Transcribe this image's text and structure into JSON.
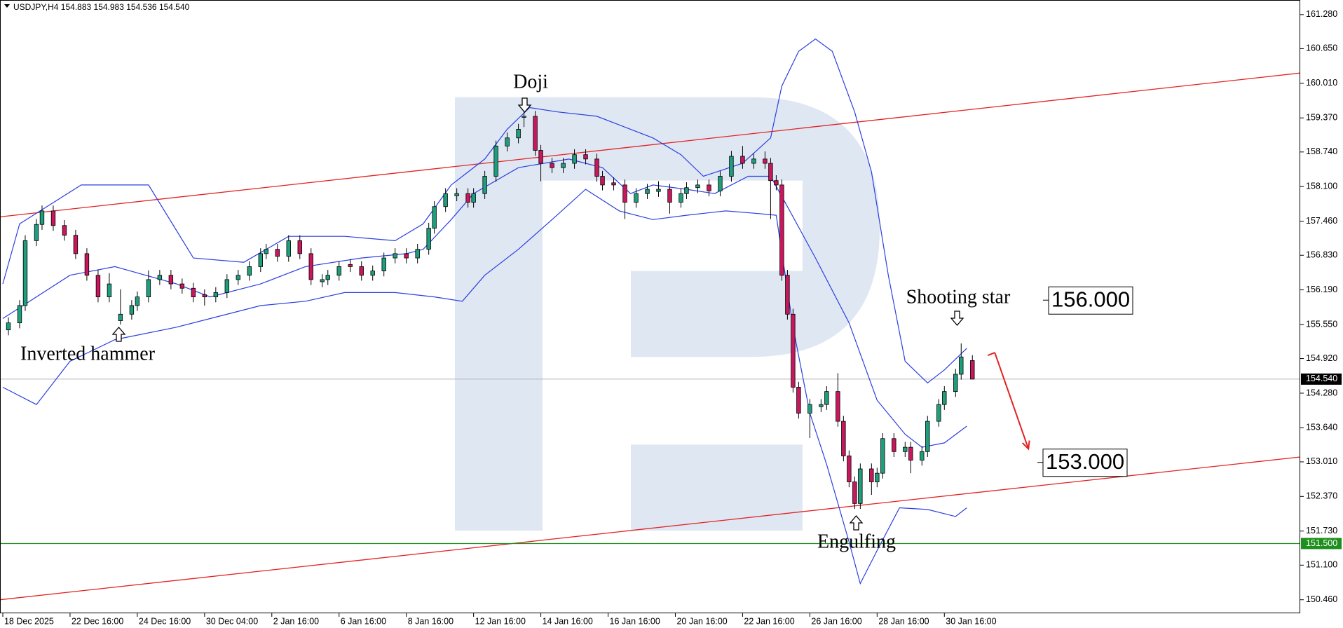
{
  "chart_data": {
    "type": "candlestick",
    "title": "USDJPY,H4 154.883 154.983 154.536 154.540",
    "xlim": [
      -0.5,
      231.5
    ],
    "ylim": [
      150.21,
      161.55
    ],
    "xticks": [
      {
        "value": 0,
        "label": "18 Dec 2025"
      },
      {
        "value": 12,
        "label": "22 Dec 16:00"
      },
      {
        "value": 24,
        "label": "24 Dec 16:00"
      },
      {
        "value": 36,
        "label": "30 Dec 04:00"
      },
      {
        "value": 48,
        "label": "2 Jan 16:00"
      },
      {
        "value": 60,
        "label": "6 Jan 16:00"
      },
      {
        "value": 72,
        "label": "8 Jan 16:00"
      },
      {
        "value": 84,
        "label": "12 Jan 16:00"
      },
      {
        "value": 96,
        "label": "14 Jan 16:00"
      },
      {
        "value": 108,
        "label": "16 Jan 16:00"
      },
      {
        "value": 120,
        "label": "20 Jan 16:00"
      },
      {
        "value": 132,
        "label": "22 Jan 16:00"
      },
      {
        "value": 144,
        "label": "26 Jan 16:00"
      },
      {
        "value": 156,
        "label": "28 Jan 16:00"
      },
      {
        "value": 168,
        "label": "30 Jan 16:00"
      }
    ],
    "yticks": [
      {
        "value": 161.28,
        "label": "161.280"
      },
      {
        "value": 160.65,
        "label": "160.650"
      },
      {
        "value": 160.01,
        "label": "160.010"
      },
      {
        "value": 159.37,
        "label": "159.370"
      },
      {
        "value": 158.74,
        "label": "158.740"
      },
      {
        "value": 158.1,
        "label": "158.100"
      },
      {
        "value": 157.46,
        "label": "157.460"
      },
      {
        "value": 156.83,
        "label": "156.830"
      },
      {
        "value": 156.19,
        "label": "156.190"
      },
      {
        "value": 155.55,
        "label": "155.550"
      },
      {
        "value": 154.92,
        "label": "154.920"
      },
      {
        "value": 154.28,
        "label": "154.280"
      },
      {
        "value": 153.64,
        "label": "153.640"
      },
      {
        "value": 153.01,
        "label": "153.010"
      },
      {
        "value": 152.37,
        "label": "152.370"
      },
      {
        "value": 151.73,
        "label": "151.730"
      },
      {
        "value": 151.1,
        "label": "151.100"
      },
      {
        "value": 150.46,
        "label": "150.460"
      }
    ],
    "up_color": "#1f9e7e",
    "down_color": "#c8175d",
    "band_color": "#2b3fe0",
    "candles": [
      [
        1,
        155.45,
        155.68,
        155.35,
        155.58
      ],
      [
        3,
        155.58,
        156.0,
        155.48,
        155.9
      ],
      [
        4,
        155.9,
        157.2,
        155.8,
        157.1
      ],
      [
        6,
        157.1,
        157.5,
        157.0,
        157.4
      ],
      [
        7,
        157.4,
        157.75,
        157.3,
        157.65
      ],
      [
        9,
        157.65,
        157.75,
        157.28,
        157.38
      ],
      [
        11,
        157.38,
        157.48,
        157.1,
        157.2
      ],
      [
        13,
        157.2,
        157.3,
        156.76,
        156.86
      ],
      [
        15,
        156.86,
        156.96,
        156.36,
        156.46
      ],
      [
        17,
        156.46,
        156.56,
        155.96,
        156.06
      ],
      [
        19,
        156.06,
        156.5,
        155.96,
        156.3
      ],
      [
        21,
        155.62,
        156.2,
        155.55,
        155.74
      ],
      [
        23,
        155.74,
        156.0,
        155.64,
        155.9
      ],
      [
        24,
        155.9,
        156.16,
        155.8,
        156.06
      ],
      [
        26,
        156.06,
        156.55,
        155.96,
        156.38
      ],
      [
        28,
        156.38,
        156.56,
        156.28,
        156.46
      ],
      [
        30,
        156.46,
        156.56,
        156.2,
        156.3
      ],
      [
        32,
        156.3,
        156.4,
        156.12,
        156.22
      ],
      [
        34,
        156.22,
        156.32,
        155.96,
        156.06
      ],
      [
        36,
        156.1,
        156.2,
        155.9,
        156.06
      ],
      [
        38,
        156.06,
        156.24,
        155.96,
        156.14
      ],
      [
        40,
        156.14,
        156.48,
        156.04,
        156.38
      ],
      [
        42,
        156.38,
        156.56,
        156.28,
        156.46
      ],
      [
        44,
        156.46,
        156.72,
        156.36,
        156.62
      ],
      [
        46,
        156.62,
        156.96,
        156.52,
        156.86
      ],
      [
        47,
        156.86,
        157.04,
        156.76,
        156.94
      ],
      [
        49,
        156.94,
        157.04,
        156.71,
        156.81
      ],
      [
        51,
        156.81,
        157.2,
        156.71,
        157.1
      ],
      [
        53,
        157.1,
        157.2,
        156.76,
        156.86
      ],
      [
        55,
        156.86,
        156.96,
        156.28,
        156.38
      ],
      [
        57,
        156.34,
        156.48,
        156.24,
        156.38
      ],
      [
        58,
        156.38,
        156.56,
        156.28,
        156.46
      ],
      [
        60,
        156.46,
        156.72,
        156.36,
        156.62
      ],
      [
        62,
        156.66,
        156.76,
        156.52,
        156.62
      ],
      [
        64,
        156.62,
        156.72,
        156.36,
        156.46
      ],
      [
        66,
        156.46,
        156.64,
        156.36,
        156.54
      ],
      [
        68,
        156.54,
        156.88,
        156.44,
        156.78
      ],
      [
        70,
        156.78,
        156.96,
        156.68,
        156.86
      ],
      [
        72,
        156.86,
        156.96,
        156.68,
        156.78
      ],
      [
        74,
        156.78,
        157.04,
        156.68,
        156.94
      ],
      [
        76,
        156.94,
        157.43,
        156.84,
        157.33
      ],
      [
        77,
        157.33,
        157.83,
        157.23,
        157.73
      ],
      [
        79,
        157.73,
        158.07,
        157.63,
        157.97
      ],
      [
        81,
        157.93,
        158.07,
        157.83,
        157.97
      ],
      [
        83,
        157.97,
        158.07,
        157.71,
        157.81
      ],
      [
        84,
        157.81,
        158.07,
        157.71,
        157.97
      ],
      [
        86,
        157.97,
        158.39,
        157.87,
        158.29
      ],
      [
        88,
        158.29,
        158.95,
        158.19,
        158.85
      ],
      [
        90,
        158.85,
        159.1,
        158.75,
        159.0
      ],
      [
        92,
        159.0,
        159.26,
        158.9,
        159.16
      ],
      [
        93,
        159.38,
        159.6,
        159.2,
        159.4
      ],
      [
        95,
        159.4,
        159.5,
        158.67,
        158.77
      ],
      [
        96,
        158.77,
        158.87,
        158.2,
        158.53
      ],
      [
        98,
        158.53,
        158.63,
        158.35,
        158.45
      ],
      [
        100,
        158.45,
        158.63,
        158.35,
        158.53
      ],
      [
        102,
        158.53,
        158.79,
        158.43,
        158.69
      ],
      [
        104,
        158.69,
        158.79,
        158.51,
        158.61
      ],
      [
        106,
        158.61,
        158.71,
        158.19,
        158.29
      ],
      [
        107,
        158.29,
        158.39,
        158.03,
        158.13
      ],
      [
        109,
        158.17,
        158.27,
        158.03,
        158.13
      ],
      [
        111,
        158.13,
        158.23,
        157.5,
        157.81
      ],
      [
        113,
        157.81,
        158.07,
        157.71,
        157.97
      ],
      [
        115,
        157.97,
        158.15,
        157.87,
        158.05
      ],
      [
        117,
        158.01,
        158.2,
        157.91,
        158.05
      ],
      [
        119,
        158.05,
        158.15,
        157.6,
        157.81
      ],
      [
        121,
        157.81,
        158.07,
        157.71,
        157.97
      ],
      [
        122,
        157.97,
        158.18,
        157.87,
        158.08
      ],
      [
        124,
        158.08,
        158.23,
        157.98,
        158.13
      ],
      [
        126,
        158.13,
        158.23,
        157.92,
        158.02
      ],
      [
        128,
        158.02,
        158.39,
        157.92,
        158.29
      ],
      [
        130,
        158.29,
        158.76,
        158.19,
        158.66
      ],
      [
        132,
        158.66,
        158.85,
        158.43,
        158.53
      ],
      [
        134,
        158.53,
        158.71,
        158.43,
        158.61
      ],
      [
        136,
        158.61,
        158.75,
        158.43,
        158.53
      ],
      [
        137,
        158.53,
        158.63,
        157.5,
        158.21
      ],
      [
        138,
        158.21,
        158.31,
        158.03,
        158.13
      ],
      [
        139,
        158.13,
        158.23,
        156.36,
        156.46
      ],
      [
        140,
        156.46,
        156.56,
        155.64,
        155.74
      ],
      [
        141,
        155.74,
        155.84,
        154.29,
        154.39
      ],
      [
        142,
        154.39,
        154.49,
        153.81,
        153.91
      ],
      [
        144,
        153.91,
        154.17,
        153.45,
        154.07
      ],
      [
        146,
        154.03,
        154.17,
        153.93,
        154.07
      ],
      [
        147,
        154.07,
        154.41,
        153.97,
        154.31
      ],
      [
        149,
        154.31,
        154.65,
        153.66,
        153.76
      ],
      [
        150,
        153.76,
        153.86,
        153.02,
        153.12
      ],
      [
        151,
        153.12,
        153.22,
        152.54,
        152.64
      ],
      [
        152,
        152.64,
        152.74,
        152.14,
        152.24
      ],
      [
        153,
        152.24,
        152.98,
        152.14,
        152.88
      ],
      [
        155,
        152.88,
        152.98,
        152.4,
        152.64
      ],
      [
        156,
        152.64,
        152.9,
        152.54,
        152.8
      ],
      [
        157,
        152.8,
        153.54,
        152.7,
        153.44
      ],
      [
        159,
        153.44,
        153.54,
        153.1,
        153.2
      ],
      [
        161,
        153.2,
        153.38,
        153.1,
        153.28
      ],
      [
        162,
        153.28,
        153.38,
        152.8,
        153.04
      ],
      [
        164,
        153.04,
        153.3,
        152.94,
        153.2
      ],
      [
        165,
        153.2,
        153.86,
        153.1,
        153.76
      ],
      [
        167,
        153.76,
        154.17,
        153.66,
        154.07
      ],
      [
        168,
        154.07,
        154.41,
        153.97,
        154.31
      ],
      [
        170,
        154.31,
        154.73,
        154.21,
        154.63
      ],
      [
        171,
        154.63,
        155.2,
        154.53,
        154.95
      ],
      [
        173,
        154.883,
        154.983,
        154.536,
        154.54
      ]
    ],
    "bands": [
      {
        "x": [
          0,
          3,
          14,
          26,
          34,
          43,
          51,
          61,
          70,
          75,
          80,
          86,
          90,
          94,
          99,
          106,
          112,
          116,
          121,
          125,
          132,
          137,
          139,
          142,
          145,
          148,
          152,
          155,
          158,
          161,
          165,
          168,
          172
        ],
        "values": [
          156.3,
          157.41,
          158.13,
          158.13,
          156.78,
          156.7,
          157.18,
          157.18,
          157.1,
          157.41,
          158.13,
          158.61,
          159.16,
          159.56,
          159.48,
          159.4,
          159.16,
          159.0,
          158.69,
          158.29,
          158.53,
          159.0,
          159.96,
          160.6,
          160.83,
          160.6,
          159.48,
          158.37,
          156.46,
          154.87,
          154.47,
          154.71,
          155.11
        ]
      },
      {
        "x": [
          0,
          12,
          20,
          31,
          37,
          46,
          54,
          64,
          72,
          75,
          80,
          84,
          92,
          101,
          107,
          112,
          116,
          122,
          127,
          133,
          137,
          140,
          145,
          151,
          156,
          161,
          164,
          168,
          172
        ],
        "values": [
          155.66,
          156.46,
          156.62,
          156.3,
          156.06,
          156.3,
          156.62,
          156.78,
          156.86,
          156.94,
          157.49,
          157.97,
          158.45,
          158.61,
          158.45,
          157.97,
          158.13,
          158.05,
          157.97,
          158.29,
          158.29,
          157.73,
          156.78,
          155.58,
          154.15,
          153.52,
          153.28,
          153.36,
          153.67
        ]
      },
      {
        "x": [
          0,
          6,
          12,
          20,
          31,
          37,
          46,
          54,
          61,
          70,
          77,
          82,
          86,
          92,
          98,
          104,
          110,
          116,
          122,
          129,
          135,
          138,
          141,
          144,
          147,
          151,
          153,
          156,
          160,
          165,
          170,
          172
        ],
        "values": [
          154.39,
          154.07,
          154.87,
          155.27,
          155.5,
          155.66,
          155.9,
          155.98,
          156.14,
          156.14,
          156.06,
          155.98,
          156.46,
          156.94,
          157.49,
          158.05,
          157.65,
          157.49,
          157.57,
          157.65,
          157.6,
          157.57,
          155.5,
          153.91,
          152.96,
          151.53,
          150.76,
          151.37,
          152.16,
          152.13,
          152.0,
          152.16
        ]
      }
    ],
    "trend_lines": [
      {
        "x": [
          -0.5,
          231.5
        ],
        "values": [
          157.54,
          160.2
        ],
        "color": "#e32222"
      },
      {
        "x": [
          -0.5,
          231.5
        ],
        "values": [
          150.46,
          153.1
        ],
        "color": "#e32222"
      }
    ],
    "forecast_arrow": {
      "x": [
        177,
        183
      ],
      "values": [
        155.03,
        153.25
      ],
      "color": "#e32222"
    },
    "price_line": {
      "value": 154.54,
      "label": "154.540"
    },
    "support_line": {
      "value": 151.5,
      "label": "151.500",
      "color": "#1d8f1d"
    },
    "levels": [
      {
        "value": 156,
        "label": "156.000"
      },
      {
        "value": 153,
        "label": "153.000"
      }
    ],
    "annotations": {
      "doji": "Doji",
      "inverted_hammer": "Inverted hammer",
      "engulfing": "Engulfing",
      "shooting_star": "Shooting star"
    }
  }
}
